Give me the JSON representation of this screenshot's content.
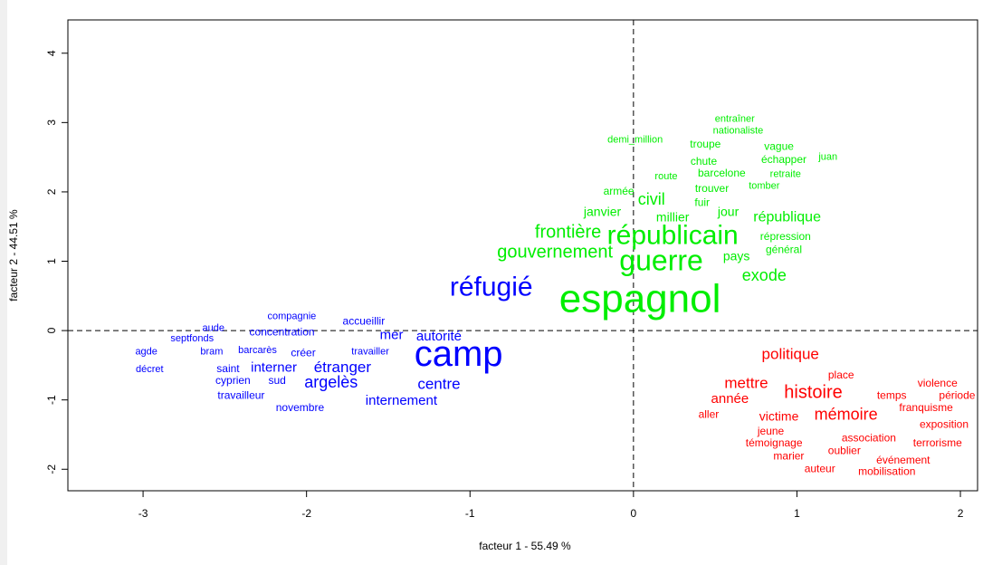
{
  "chart_data": {
    "type": "word-scatter",
    "x_label": "facteur  1  - 55.49 %",
    "y_label": "facteur  2  - 44.51 %",
    "xlim": [
      -3.46,
      2.105
    ],
    "ylim": [
      -2.31,
      4.48
    ],
    "xticks": [
      -3,
      -2,
      -1,
      0,
      1,
      2
    ],
    "yticks": [
      -2,
      -1,
      0,
      1,
      2,
      3,
      4
    ],
    "zero_lines": true,
    "series": [
      {
        "color": "#0000ff",
        "labels": [
          "camp",
          "réfugié",
          "argelès",
          "étranger",
          "centre",
          "internement",
          "autorité",
          "mer",
          "interner",
          "accueillir",
          "compagnie",
          "concentration",
          "aude",
          "septfonds",
          "agde",
          "décret",
          "bram",
          "barcarès",
          "créer",
          "travailler",
          "saint",
          "cyprien",
          "sud",
          "travailleur",
          "novembre"
        ],
        "x": [
          -1.07,
          -0.87,
          -1.85,
          -1.78,
          -1.19,
          -1.42,
          -1.19,
          -1.48,
          -2.2,
          -1.65,
          -2.09,
          -2.15,
          -2.57,
          -2.7,
          -2.98,
          -2.96,
          -2.58,
          -2.3,
          -2.02,
          -1.61,
          -2.48,
          -2.45,
          -2.18,
          -2.4,
          -2.04
        ],
        "y": [
          -0.37,
          0.61,
          -0.76,
          -0.54,
          -0.78,
          -1.02,
          -0.09,
          -0.07,
          -0.54,
          0.13,
          0.2,
          -0.03,
          0.03,
          -0.12,
          -0.31,
          -0.56,
          -0.31,
          -0.29,
          -0.33,
          -0.31,
          -0.56,
          -0.73,
          -0.73,
          -0.94,
          -1.12
        ],
        "sizes": [
          40,
          30,
          18,
          17,
          17,
          15,
          15,
          15,
          15,
          12,
          11,
          12,
          11,
          11,
          11,
          11,
          11,
          11,
          12,
          11,
          12,
          12,
          12,
          12,
          12
        ]
      },
      {
        "color": "#00ee00",
        "labels": [
          "espagnol",
          "guerre",
          "républicain",
          "gouvernement",
          "frontière",
          "exode",
          "république",
          "civil",
          "janvier",
          "millier",
          "jour",
          "pays",
          "armée",
          "route",
          "fuir",
          "trouver",
          "tomber",
          "barcelone",
          "retraite",
          "chute",
          "échapper",
          "juan",
          "vague",
          "troupe",
          "demi_million",
          "nationaliste",
          "entraîner",
          "répression",
          "général"
        ],
        "x": [
          0.04,
          0.17,
          0.24,
          -0.48,
          -0.4,
          0.8,
          0.94,
          0.11,
          -0.19,
          0.24,
          0.58,
          0.63,
          -0.09,
          0.2,
          0.42,
          0.48,
          0.8,
          0.54,
          0.93,
          0.43,
          0.92,
          1.19,
          0.89,
          0.44,
          0.01,
          0.64,
          0.62,
          0.93,
          0.92
        ],
        "y": [
          0.42,
          0.98,
          1.35,
          1.12,
          1.41,
          0.78,
          1.63,
          1.88,
          1.7,
          1.62,
          1.7,
          1.06,
          2.0,
          2.22,
          1.84,
          2.04,
          2.08,
          2.26,
          2.25,
          2.43,
          2.46,
          2.5,
          2.65,
          2.68,
          2.75,
          2.88,
          3.05,
          1.35,
          1.16
        ],
        "sizes": [
          44,
          32,
          30,
          20,
          20,
          18,
          16,
          18,
          14,
          14,
          14,
          14,
          12,
          11,
          12,
          12,
          11,
          12,
          11,
          12,
          12,
          11,
          12,
          12,
          11,
          11,
          11,
          12,
          12
        ]
      },
      {
        "color": "#ff0000",
        "labels": [
          "politique",
          "histoire",
          "mémoire",
          "mettre",
          "année",
          "place",
          "temps",
          "violence",
          "période",
          "franquisme",
          "aller",
          "victime",
          "exposition",
          "jeune",
          "association",
          "terrorisme",
          "témoignage",
          "oublier",
          "marier",
          "événement",
          "mobilisation",
          "auteur"
        ],
        "x": [
          0.96,
          1.1,
          1.3,
          0.69,
          0.59,
          1.27,
          1.58,
          1.86,
          1.98,
          1.79,
          0.46,
          0.89,
          1.9,
          0.84,
          1.44,
          1.86,
          0.86,
          1.29,
          0.95,
          1.65,
          1.55,
          1.14
        ],
        "y": [
          -0.35,
          -0.9,
          -1.22,
          -0.77,
          -0.99,
          -0.65,
          -0.94,
          -0.77,
          -0.94,
          -1.12,
          -1.22,
          -1.25,
          -1.36,
          -1.46,
          -1.56,
          -1.63,
          -1.63,
          -1.74,
          -1.82,
          -1.88,
          -2.04,
          -2.0
        ],
        "sizes": [
          17,
          20,
          18,
          17,
          15,
          12,
          12,
          12,
          12,
          12,
          12,
          14,
          12,
          12,
          12,
          12,
          12,
          12,
          12,
          12,
          12,
          12
        ]
      }
    ]
  }
}
